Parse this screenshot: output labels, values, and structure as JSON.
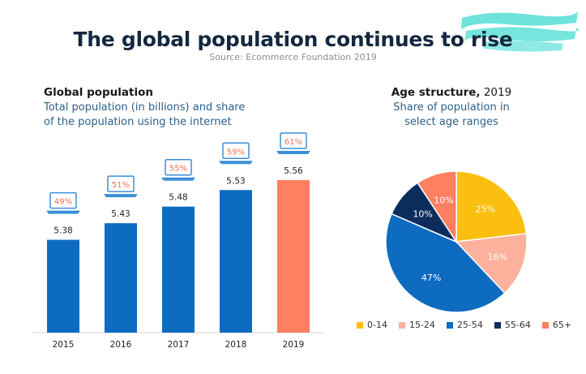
{
  "header": {
    "title": "The global population continues to rise",
    "source": "Source: Ecommerce Foundation 2019"
  },
  "left_panel": {
    "heading": "Global population",
    "subtitle_line1": "Total population (in billions) and share",
    "subtitle_line2": "of the population using the internet"
  },
  "right_panel": {
    "heading_bold": "Age structure,",
    "heading_year": " 2019",
    "subtitle_line1": "Share of population in",
    "subtitle_line2": "select age ranges"
  },
  "colors": {
    "bar_blue": "#0d6bc0",
    "bar_highlight": "#ff7f61",
    "laptop": "#3b8fd9",
    "pct_text": "#f07050",
    "brush": "#5ee0d8"
  },
  "chart_data": [
    {
      "type": "bar",
      "categories": [
        "2015",
        "2016",
        "2017",
        "2018",
        "2019"
      ],
      "series": [
        {
          "values": [
            5.38,
            5.43,
            5.48,
            5.53,
            5.56
          ]
        }
      ],
      "value_labels": [
        "5.38",
        "5.43",
        "5.48",
        "5.53",
        "5.56"
      ],
      "internet_share": [
        "49%",
        "51%",
        "55%",
        "59%",
        "61%"
      ],
      "highlight_category": "2019"
    },
    {
      "type": "pie",
      "labels": [
        "0-14",
        "15-24",
        "25-54",
        "55-64",
        "65+"
      ],
      "values": [
        25,
        16,
        47,
        10,
        10
      ],
      "value_labels": [
        "25%",
        "16%",
        "47%",
        "10%",
        "10%"
      ],
      "colors": [
        "#fbbf0f",
        "#fbb19c",
        "#0d6bc0",
        "#0c2d5c",
        "#ff7f61"
      ],
      "legend": "bottom"
    }
  ]
}
